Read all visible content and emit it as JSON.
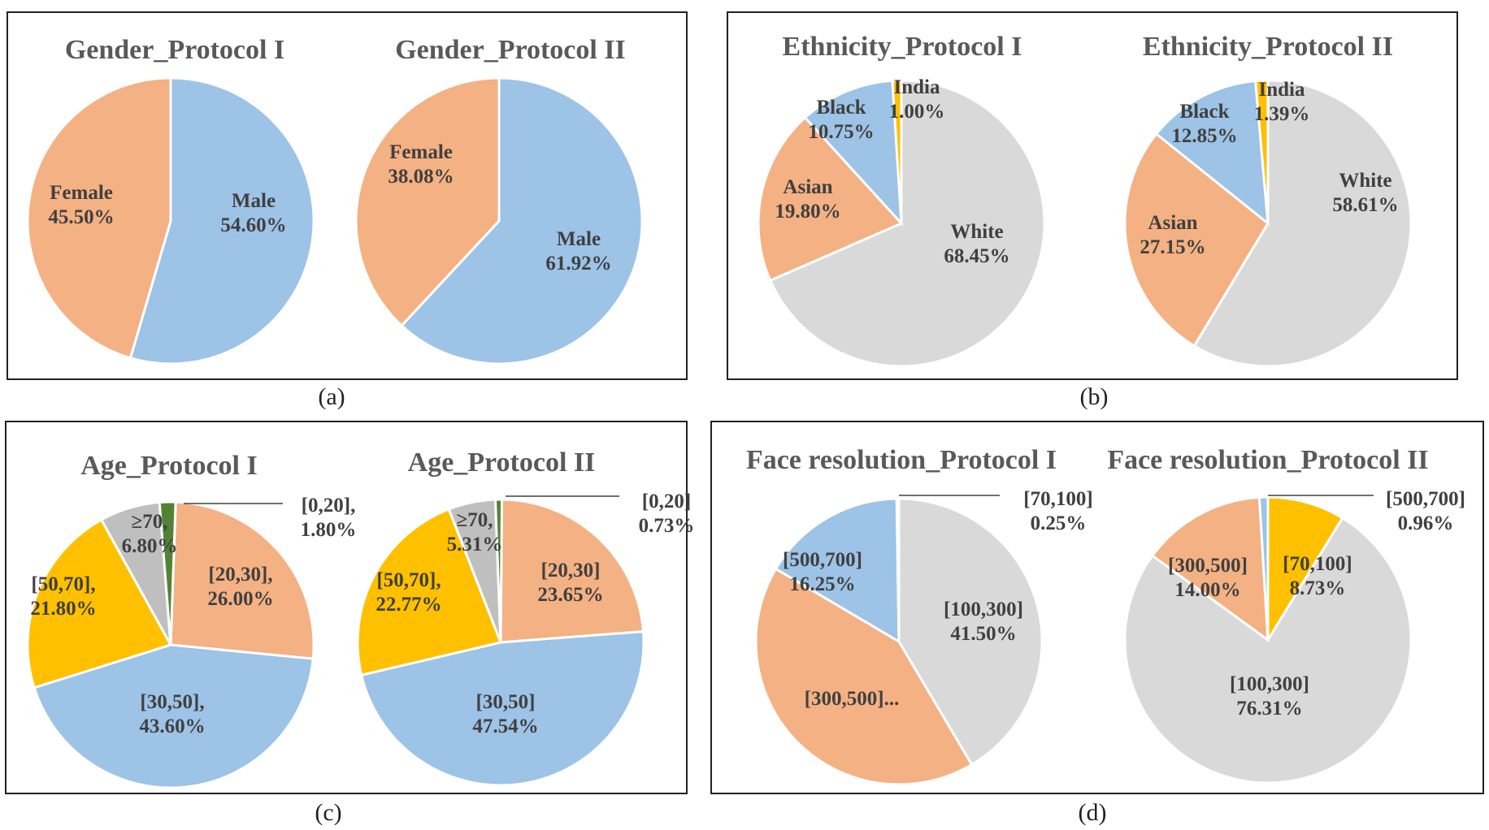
{
  "captions": {
    "a": "(a)",
    "b": "(b)",
    "c": "(c)",
    "d": "(d)"
  },
  "chart_data": [
    {
      "type": "pie",
      "panel": "(a)",
      "title": "Gender_Protocol I",
      "slices": [
        {
          "label": "Male",
          "pct_text": "54.60%",
          "value": 54.6,
          "color": "#9DC3E6"
        },
        {
          "label": "Female",
          "pct_text": "45.50%",
          "value": 45.5,
          "color": "#F4B183"
        }
      ]
    },
    {
      "type": "pie",
      "panel": "(a)",
      "title": "Gender_Protocol II",
      "slices": [
        {
          "label": "Male",
          "pct_text": "61.92%",
          "value": 61.92,
          "color": "#9DC3E6"
        },
        {
          "label": "Female",
          "pct_text": "38.08%",
          "value": 38.08,
          "color": "#F4B183"
        }
      ]
    },
    {
      "type": "pie",
      "panel": "(b)",
      "title": "Ethnicity_Protocol I",
      "slices": [
        {
          "label": "White",
          "pct_text": "68.45%",
          "value": 68.45,
          "color": "#D9D9D9"
        },
        {
          "label": "Asian",
          "pct_text": "19.80%",
          "value": 19.8,
          "color": "#F4B183"
        },
        {
          "label": "Black",
          "pct_text": "10.75%",
          "value": 10.75,
          "color": "#9DC3E6"
        },
        {
          "label": "India",
          "pct_text": "1.00%",
          "value": 1.0,
          "color": "#FFC000"
        }
      ]
    },
    {
      "type": "pie",
      "panel": "(b)",
      "title": "Ethnicity_Protocol II",
      "slices": [
        {
          "label": "White",
          "pct_text": "58.61%",
          "value": 58.61,
          "color": "#D9D9D9"
        },
        {
          "label": "Asian",
          "pct_text": "27.15%",
          "value": 27.15,
          "color": "#F4B183"
        },
        {
          "label": "Black",
          "pct_text": "12.85%",
          "value": 12.85,
          "color": "#9DC3E6"
        },
        {
          "label": "India",
          "pct_text": "1.39%",
          "value": 1.39,
          "color": "#FFC000"
        }
      ]
    },
    {
      "type": "pie",
      "panel": "(c)",
      "title": "Age_Protocol I",
      "slices": [
        {
          "label": "[20,30],",
          "pct_text": "26.00%",
          "value": 26.0,
          "color": "#F4B183"
        },
        {
          "label": "[30,50],",
          "pct_text": "43.60%",
          "value": 43.6,
          "color": "#9DC3E6"
        },
        {
          "label": "[50,70],",
          "pct_text": "21.80%",
          "value": 21.8,
          "color": "#FFC000"
        },
        {
          "label": "≥70,",
          "pct_text": "6.80%",
          "value": 6.8,
          "color": "#BFBFBF"
        },
        {
          "label": "[0,20],",
          "pct_text": "1.80%",
          "value": 1.8,
          "color": "#548235"
        }
      ]
    },
    {
      "type": "pie",
      "panel": "(c)",
      "title": "Age_Protocol II",
      "slices": [
        {
          "label": "[20,30]",
          "pct_text": "23.65%",
          "value": 23.65,
          "color": "#F4B183"
        },
        {
          "label": "[30,50]",
          "pct_text": "47.54%",
          "value": 47.54,
          "color": "#9DC3E6"
        },
        {
          "label": "[50,70],",
          "pct_text": "22.77%",
          "value": 22.77,
          "color": "#FFC000"
        },
        {
          "label": "≥70,",
          "pct_text": "5.31%",
          "value": 5.31,
          "color": "#BFBFBF"
        },
        {
          "label": "[0,20]",
          "pct_text": "0.73%",
          "value": 0.73,
          "color": "#548235"
        }
      ]
    },
    {
      "type": "pie",
      "panel": "(d)",
      "title": "Face resolution_Protocol I",
      "slices": [
        {
          "label": "[100,300]",
          "pct_text": "41.50%",
          "value": 41.5,
          "color": "#D9D9D9"
        },
        {
          "label": "[300,500]...",
          "pct_text": "",
          "value": 42.0,
          "color": "#F4B183"
        },
        {
          "label": "[500,700]",
          "pct_text": "16.25%",
          "value": 16.25,
          "color": "#9DC3E6"
        },
        {
          "label": "[70,100]",
          "pct_text": "0.25%",
          "value": 0.25,
          "color": "#FFC000"
        }
      ]
    },
    {
      "type": "pie",
      "panel": "(d)",
      "title": "Face resolution_Protocol II",
      "slices": [
        {
          "label": "[70,100]",
          "pct_text": "8.73%",
          "value": 8.73,
          "color": "#FFC000"
        },
        {
          "label": "[100,300]",
          "pct_text": "76.31%",
          "value": 76.31,
          "color": "#D9D9D9"
        },
        {
          "label": "[300,500]",
          "pct_text": "14.00%",
          "value": 14.0,
          "color": "#F4B183"
        },
        {
          "label": "[500,700]",
          "pct_text": "0.96%",
          "value": 0.96,
          "color": "#9DC3E6"
        }
      ]
    }
  ]
}
